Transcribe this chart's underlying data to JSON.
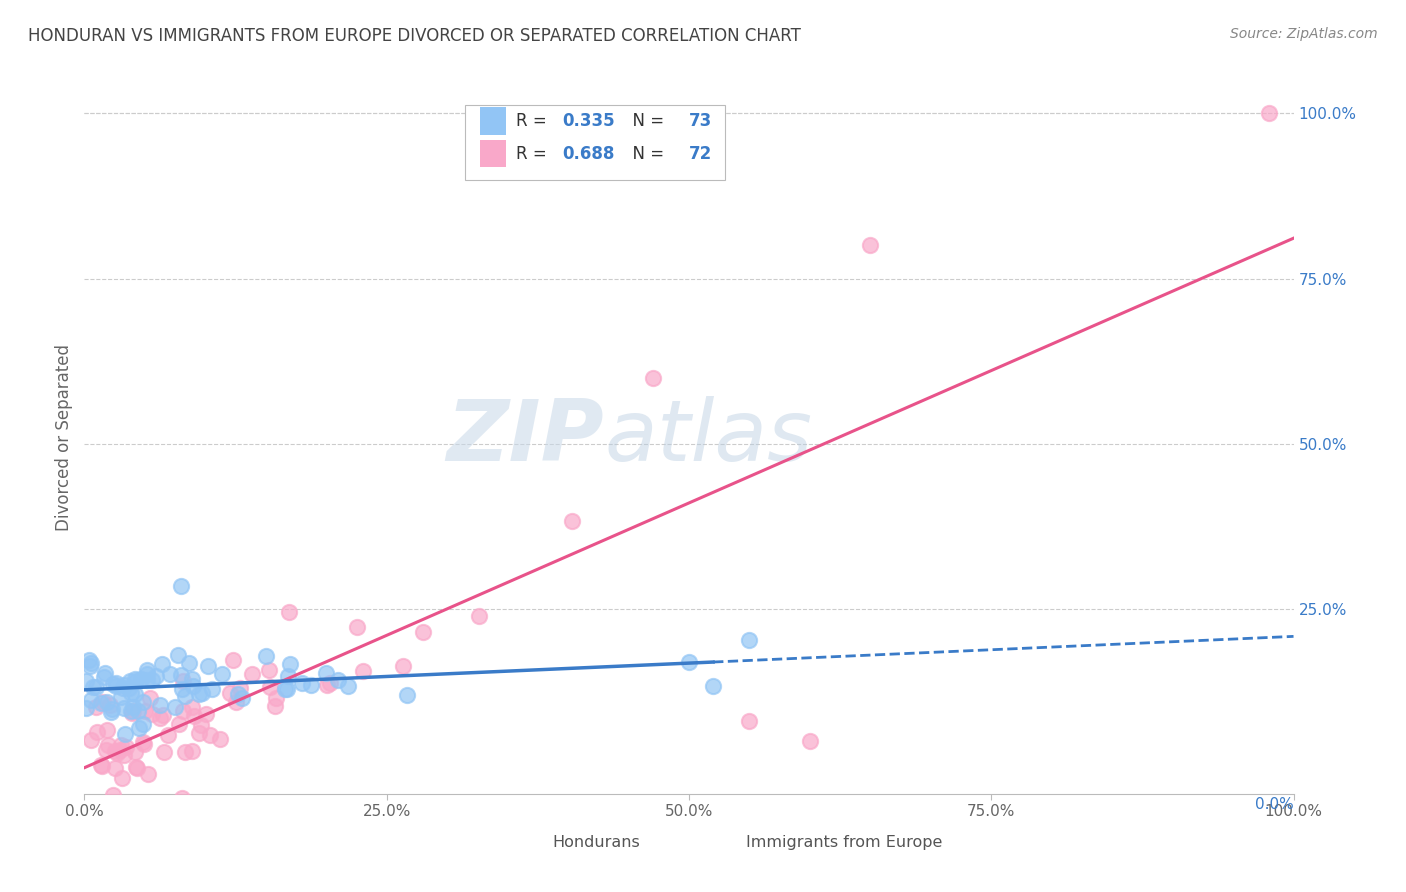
{
  "title": "HONDURAN VS IMMIGRANTS FROM EUROPE DIVORCED OR SEPARATED CORRELATION CHART",
  "source": "Source: ZipAtlas.com",
  "ylabel": "Divorced or Separated",
  "watermark_zip": "ZIP",
  "watermark_atlas": "atlas",
  "honduran_R": 0.335,
  "honduran_N": 73,
  "europe_R": 0.688,
  "europe_N": 72,
  "honduran_color": "#92C5F5",
  "europe_color": "#F9A8C9",
  "honduran_line_color": "#3A7BC8",
  "europe_line_color": "#E8538A",
  "background_color": "#FFFFFF",
  "grid_color": "#CCCCCC",
  "title_color": "#444444",
  "source_color": "#888888",
  "axis_label_color": "#3A7BC8",
  "xlim": [
    0.0,
    1.0
  ],
  "ylim": [
    -0.03,
    1.05
  ],
  "xticks": [
    0.0,
    0.25,
    0.5,
    0.75,
    1.0
  ],
  "xtick_labels": [
    "0.0%",
    "25.0%",
    "50.0%",
    "75.0%",
    "100.0%"
  ],
  "yticks_right": [
    0.25,
    0.5,
    0.75,
    1.0
  ],
  "ytick_labels_right": [
    "25.0%",
    "50.0%",
    "75.0%",
    "100.0%"
  ]
}
